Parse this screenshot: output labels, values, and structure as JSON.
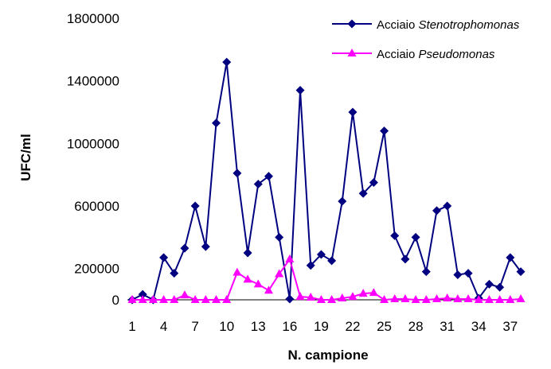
{
  "chart_data": {
    "type": "line",
    "xlabel": "N. campione",
    "ylabel": "UFC/ml",
    "xlim": [
      1,
      38
    ],
    "ylim": [
      0,
      1800000
    ],
    "x_ticks": [
      1,
      4,
      7,
      10,
      13,
      16,
      19,
      22,
      25,
      28,
      31,
      34,
      37
    ],
    "y_ticks": [
      0,
      200000,
      600000,
      1000000,
      1400000,
      1800000
    ],
    "legend_position": "top-right",
    "x": [
      1,
      2,
      3,
      4,
      5,
      6,
      7,
      8,
      9,
      10,
      11,
      12,
      13,
      14,
      15,
      16,
      17,
      18,
      19,
      20,
      21,
      22,
      23,
      24,
      25,
      26,
      27,
      28,
      29,
      30,
      31,
      32,
      33,
      34,
      35,
      36,
      37,
      38
    ],
    "series": [
      {
        "name_prefix": "Acciaio ",
        "name_italic": "Stenotrophomonas",
        "color": "#000080",
        "marker": "diamond",
        "values": [
          0,
          35000,
          0,
          270000,
          170000,
          330000,
          600000,
          340000,
          1130000,
          1520000,
          810000,
          300000,
          740000,
          790000,
          400000,
          5000,
          1340000,
          220000,
          290000,
          250000,
          630000,
          1200000,
          680000,
          750000,
          1080000,
          410000,
          260000,
          400000,
          180000,
          570000,
          600000,
          160000,
          170000,
          10000,
          100000,
          80000,
          270000,
          180000
        ]
      },
      {
        "name_prefix": "Acciaio ",
        "name_italic": "Pseudomonas",
        "color": "#FF00FF",
        "marker": "triangle",
        "values": [
          0,
          0,
          0,
          0,
          0,
          30000,
          0,
          0,
          0,
          0,
          175000,
          130000,
          100000,
          60000,
          165000,
          260000,
          20000,
          15000,
          0,
          0,
          10000,
          20000,
          40000,
          45000,
          0,
          5000,
          5000,
          0,
          0,
          5000,
          10000,
          5000,
          5000,
          0,
          0,
          0,
          0,
          5000
        ]
      }
    ]
  }
}
